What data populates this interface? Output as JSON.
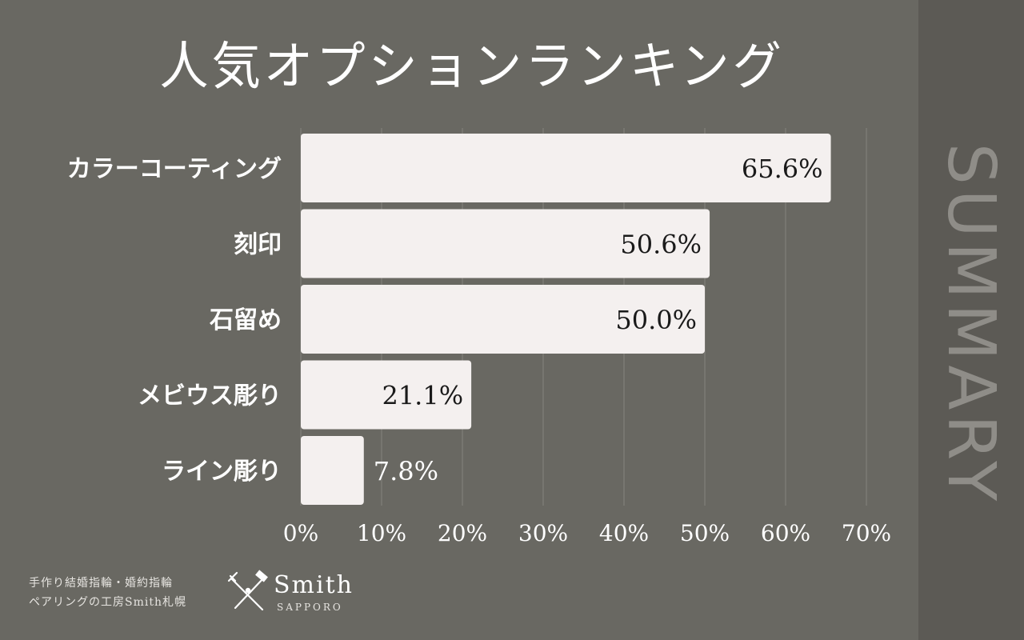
{
  "title": "人気オプションランキング",
  "side_label": "SUMMARY",
  "colors": {
    "background": "#696862",
    "sidebar": "#5c5a55",
    "bar": "#f4f0ef",
    "text": "#ffffff",
    "bar_label": "#1a1a1a",
    "grid": "#85837e"
  },
  "chart_data": {
    "type": "bar",
    "orientation": "horizontal",
    "categories": [
      "カラーコーティング",
      "刻印",
      "石留め",
      "メビウス彫り",
      "ライン彫り"
    ],
    "values": [
      65.6,
      50.6,
      50.0,
      21.1,
      7.8
    ],
    "value_labels": [
      "65.6%",
      "50.6%",
      "50.0%",
      "21.1%",
      "7.8%"
    ],
    "xlim": [
      0,
      70
    ],
    "x_ticks": [
      "0%",
      "10%",
      "20%",
      "30%",
      "40%",
      "50%",
      "60%",
      "70%"
    ],
    "grid": true
  },
  "footer": {
    "line1": "手作り結婚指輪・婚約指輪",
    "line2": "ペアリングの工房Smith札幌"
  },
  "logo": {
    "name": "Smith",
    "sub": "SAPPORO",
    "icon": "crossed-hammer-file-icon"
  }
}
